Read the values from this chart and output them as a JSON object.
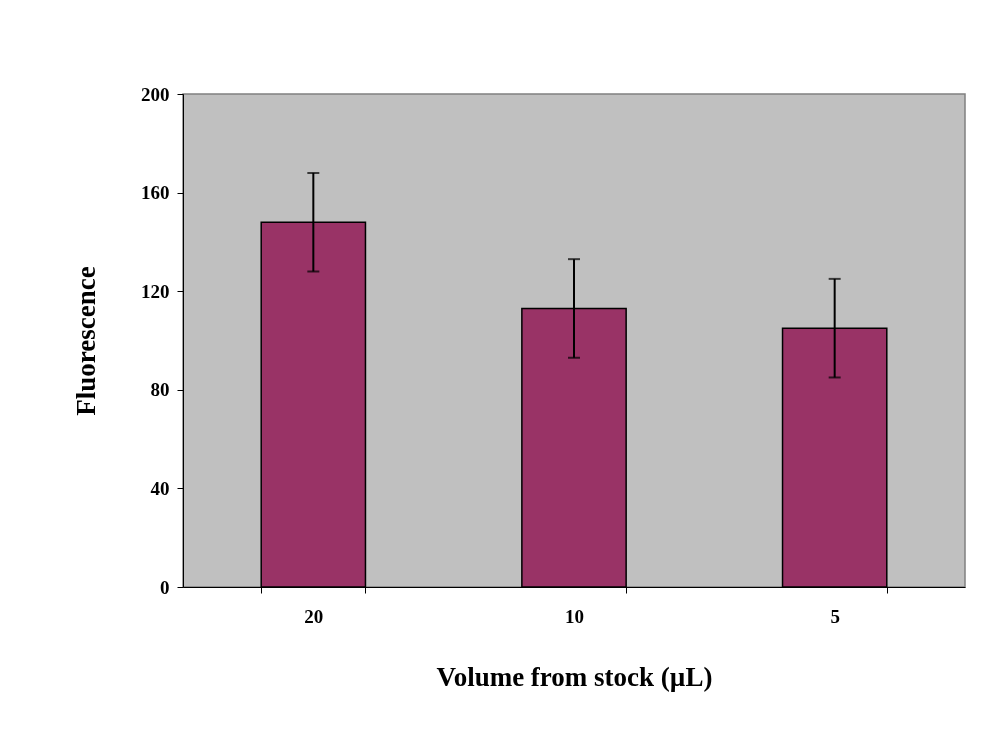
{
  "chart_data": {
    "type": "bar",
    "xlabel": "Volume from stock (µL)",
    "ylabel": "Fluorescence",
    "categories": [
      "20",
      "10",
      "5"
    ],
    "series": [
      {
        "color": "#993366",
        "values": [
          148,
          113,
          105
        ],
        "errors": [
          20,
          20,
          20
        ]
      }
    ],
    "ylim": [
      0,
      200
    ],
    "yticks": [
      0,
      40,
      80,
      120,
      160,
      200
    ],
    "grid": false
  }
}
